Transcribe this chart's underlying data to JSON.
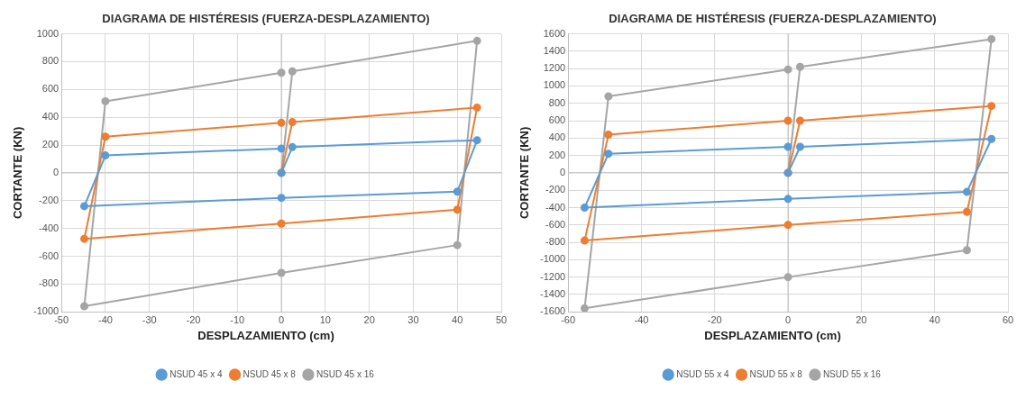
{
  "chart_data": [
    {
      "type": "line",
      "title": "DIAGRAMA DE HISTÉRESIS (FUERZA-DESPLAZAMIENTO)",
      "xlabel": "DESPLAZAMIENTO (cm)",
      "ylabel": "CORTANTE (KN)",
      "xlim": [
        -50,
        50
      ],
      "xticks": [
        -50,
        -40,
        -30,
        -20,
        -10,
        0,
        10,
        20,
        30,
        40,
        50
      ],
      "ylim": [
        -1000,
        1000
      ],
      "yticks": [
        -1000,
        -800,
        -600,
        -400,
        -200,
        0,
        200,
        400,
        600,
        800,
        1000
      ],
      "grid": true,
      "legend": "bottom",
      "marker": "circle",
      "series": [
        {
          "name": "NSUD 45 x 4",
          "color": "#5b9bd5",
          "x": [
            0,
            2.5,
            44.5,
            40,
            0,
            -44.8,
            -40,
            0
          ],
          "values": [
            0,
            185,
            235,
            -135,
            -180,
            -240,
            125,
            175
          ]
        },
        {
          "name": "NSUD 45 x 8",
          "color": "#ed7d31",
          "x": [
            0,
            2.5,
            44.5,
            40,
            0,
            -44.8,
            -40,
            0
          ],
          "values": [
            0,
            365,
            470,
            -265,
            -365,
            -475,
            260,
            360
          ]
        },
        {
          "name": "NSUD 45 x 16",
          "color": "#a5a5a5",
          "x": [
            0,
            2.5,
            44.5,
            40,
            0,
            -44.8,
            -40,
            0
          ],
          "values": [
            0,
            730,
            950,
            -520,
            -720,
            -960,
            515,
            720
          ]
        }
      ]
    },
    {
      "type": "line",
      "title": "DIAGRAMA DE HISTÉRESIS (FUERZA-DESPLAZAMIENTO)",
      "xlabel": "DESPLAZAMIENTO (cm)",
      "ylabel": "CORTANTE (KN)",
      "xlim": [
        -60,
        60
      ],
      "xticks": [
        -60,
        -40,
        -20,
        0,
        20,
        40,
        60
      ],
      "ylim": [
        -1600,
        1600
      ],
      "yticks": [
        -1600,
        -1400,
        -1200,
        -1000,
        -800,
        -600,
        -400,
        -200,
        0,
        200,
        400,
        600,
        800,
        1000,
        1200,
        1400,
        1600
      ],
      "grid": true,
      "legend": "bottom",
      "marker": "circle",
      "series": [
        {
          "name": "NSUD 55 x 4",
          "color": "#5b9bd5",
          "x": [
            0,
            3.3,
            55.5,
            48.8,
            0,
            -55.5,
            -49,
            0
          ],
          "values": [
            0,
            300,
            390,
            -220,
            -300,
            -400,
            220,
            300
          ]
        },
        {
          "name": "NSUD 55 x 8",
          "color": "#ed7d31",
          "x": [
            0,
            3.3,
            55.5,
            48.8,
            0,
            -55.5,
            -49,
            0
          ],
          "values": [
            0,
            600,
            770,
            -450,
            -600,
            -780,
            440,
            600
          ]
        },
        {
          "name": "NSUD 55 x 16",
          "color": "#a5a5a5",
          "x": [
            0,
            3.3,
            55.5,
            48.8,
            0,
            -55.5,
            -49,
            0
          ],
          "values": [
            0,
            1220,
            1540,
            -890,
            -1200,
            -1560,
            880,
            1190
          ]
        }
      ]
    }
  ]
}
